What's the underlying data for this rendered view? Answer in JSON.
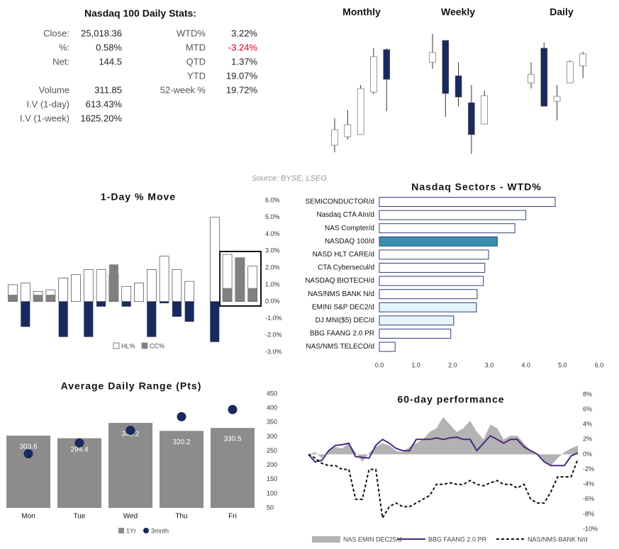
{
  "stats": {
    "title": "Nasdaq 100 Daily Stats:",
    "left": [
      [
        "Close:",
        "25,018.36"
      ],
      [
        "%:",
        "0.58%"
      ],
      [
        "Net:",
        "144.5"
      ],
      [
        "Volume",
        "311.85"
      ],
      [
        "I.V (1-day)",
        "613.43%"
      ],
      [
        "I.V (1-week)",
        "1625.20%"
      ]
    ],
    "right": [
      [
        "WTD%",
        "3.22%"
      ],
      [
        "MTD",
        "-3.24%"
      ],
      [
        "QTD",
        "1.37%"
      ],
      [
        "YTD",
        "19.07%"
      ],
      [
        "52-week %",
        "19.72%"
      ]
    ],
    "negative_color": "#d0021b"
  },
  "source": "Source: BYSE, LSEG",
  "chart_data": [
    {
      "type": "candlestick",
      "title": "Monthly",
      "up_color": "#ffffff",
      "down_color": "#1a2a5e",
      "open": [
        24550,
        24670,
        24700,
        25300,
        25900
      ],
      "high": [
        24930,
        25050,
        25400,
        25920,
        25920
      ],
      "low": [
        24450,
        24630,
        24700,
        25270,
        25030
      ],
      "close": [
        24770,
        24840,
        25350,
        25800,
        25480
      ]
    },
    {
      "type": "candlestick",
      "title": "Weekly",
      "up_color": "#ffffff",
      "down_color": "#1a2a5e",
      "open": [
        25720,
        26030,
        25530,
        25150,
        24850
      ],
      "high": [
        26120,
        26030,
        25720,
        25400,
        25320
      ],
      "low": [
        25630,
        24950,
        25100,
        24430,
        24850
      ],
      "close": [
        25860,
        25280,
        25230,
        24700,
        25250
      ]
    },
    {
      "type": "candlestick",
      "title": "Daily",
      "up_color": "#ffffff",
      "down_color": "#1a2a5e",
      "open": [
        25430,
        25920,
        25170,
        25430,
        25670
      ],
      "high": [
        25720,
        26000,
        25400,
        25750,
        25870
      ],
      "low": [
        25350,
        25100,
        24900,
        25430,
        25500
      ],
      "close": [
        25550,
        25100,
        25240,
        25730,
        25840
      ]
    },
    {
      "type": "bar",
      "title": "1-Day % Move",
      "series": [
        {
          "name": "HL%",
          "color": "#ffffff",
          "edgecolor": "#444444",
          "values": [
            1.0,
            1.1,
            0.6,
            0.7,
            1.4,
            1.6,
            1.9,
            1.9,
            1.6,
            0.9,
            1.1,
            1.9,
            2.7,
            1.9,
            1.2,
            null,
            5.0,
            2.8,
            2.6,
            2.1
          ]
        },
        {
          "name": "CC%",
          "color": "#808080",
          "negative_color": "#1a2a5e",
          "values": [
            0.4,
            -1.5,
            0.4,
            0.4,
            -2.1,
            0,
            -2.1,
            -0.3,
            2.2,
            -0.3,
            0,
            -2.1,
            -0.1,
            -0.9,
            -1.2,
            null,
            -2.4,
            0.8,
            2.6,
            0.8
          ]
        }
      ],
      "ylim": [
        -3,
        6
      ],
      "yticks": [
        {
          "value": 6,
          "label": "6.0%"
        },
        {
          "value": 5,
          "label": "5.0%"
        },
        {
          "value": 4,
          "label": "4.0%"
        },
        {
          "value": 3,
          "label": "3.0%"
        },
        {
          "value": 2,
          "label": "2.0%"
        },
        {
          "value": 1,
          "label": "1.0%"
        },
        {
          "value": 0,
          "label": "0.0%"
        },
        {
          "value": -1,
          "label": "-1.0%"
        },
        {
          "value": -2,
          "label": "-2.0%"
        },
        {
          "value": -3,
          "label": "-3.0%"
        }
      ]
    },
    {
      "type": "hbar",
      "title": "Nasdaq Sectors - WTD%",
      "edgecolor": "#2f3f7a",
      "categories": [
        "SEMICONDUCTOR/d",
        "Nasdaq CTA AIn/d",
        "NAS Compter/d",
        "NASDAQ 100/d",
        "NASD HLT CARE/d",
        "CTA Cybersecul/d",
        "NASDAQ BIOTECH/d",
        "NAS/NMS BANK N/d",
        "EMINI S&P DEC2/d",
        "DJ MNI($5) DEC/d",
        "BBG FAANG 2.0 PR",
        "NAS/NMS TELECO/d"
      ],
      "values": [
        4.8,
        4.0,
        3.7,
        3.22,
        2.98,
        2.88,
        2.84,
        2.67,
        2.65,
        2.03,
        1.95,
        0.43
      ],
      "colors": [
        "#ffffff",
        "#ffffff",
        "#ffffff",
        "#3a8fad",
        "#ffffff",
        "#ffffff",
        "#ffffff",
        "#ffffff",
        "#e3f5fb",
        "#e3f5fb",
        "#ffffff",
        "#ffffff"
      ],
      "xlim": [
        0,
        6
      ],
      "xticks": [
        {
          "value": 0,
          "label": "0.0"
        },
        {
          "value": 1,
          "label": "1.0"
        },
        {
          "value": 2,
          "label": "2.0"
        },
        {
          "value": 3,
          "label": "3.0"
        },
        {
          "value": 4,
          "label": "4.0"
        },
        {
          "value": 5,
          "label": "5.0"
        },
        {
          "value": 6,
          "label": "6.0"
        }
      ]
    },
    {
      "type": "bar_dot",
      "title": "Average Daily Range (Pts)",
      "categories": [
        "Mon",
        "Tue",
        "Wed",
        "Thu",
        "Fri"
      ],
      "series": [
        {
          "name": "1Yr",
          "color": "#8c8c8c",
          "values": [
            303.6,
            294.4,
            348.2,
            320.2,
            330.5
          ]
        },
        {
          "name": "3mnth",
          "color": "#1a2a5e",
          "values": [
            240,
            278,
            322,
            370,
            395
          ]
        }
      ],
      "ylim": [
        50,
        450
      ],
      "yticks": [
        450,
        400,
        350,
        300,
        250,
        200,
        150,
        100,
        50
      ]
    },
    {
      "type": "line",
      "title": "60-day performance",
      "series": [
        {
          "name": "NAS EMIN DEC25/d",
          "color": "#b3b3b3",
          "style": "area",
          "values": [
            0,
            0.3,
            -0.5,
            0.5,
            1,
            0.8,
            1.5,
            0.3,
            -1,
            0.2,
            1,
            1.5,
            1.2,
            0.5,
            0.3,
            1,
            1.5,
            2,
            3,
            3.5,
            5,
            4,
            3,
            3.5,
            4.5,
            3,
            2,
            4,
            3.5,
            2,
            2.5,
            2.5,
            1.5,
            0.5,
            0,
            -1,
            -1.5,
            -0.5,
            0.3,
            0.8,
            1.2
          ]
        },
        {
          "name": "BBG FAANG 2.0 PR",
          "color": "#4b2a7a",
          "style": "solid",
          "values": [
            0,
            -1,
            -0.8,
            0.5,
            1.2,
            1.3,
            1.5,
            -0.3,
            -0.4,
            -0.5,
            1.2,
            2,
            1.5,
            0.8,
            0.5,
            0.5,
            2,
            2,
            2,
            2.2,
            2,
            2.2,
            2.3,
            2,
            2,
            0.5,
            1.5,
            2.5,
            2,
            1.5,
            2,
            2,
            1,
            0.5,
            0,
            -1,
            -1.5,
            -1.5,
            -1.5,
            -0.2,
            0.2
          ]
        },
        {
          "name": "NAS/NMS BANK N/d",
          "color": "#111111",
          "style": "dashed",
          "values": [
            0,
            -0.5,
            -1.2,
            -1.5,
            -1.5,
            -2,
            -2,
            -6,
            -6,
            -2,
            -2,
            -8.5,
            -7,
            -6.5,
            -7,
            -7,
            -6.5,
            -6,
            -5.5,
            -4,
            -4,
            -3.8,
            -4,
            -4,
            -3.5,
            -4,
            -4.2,
            -3.8,
            -3.5,
            -4,
            -4,
            -4.5,
            -4,
            -6,
            -6.5,
            -6.5,
            -5,
            -3,
            -3,
            -3,
            -0.6
          ]
        }
      ],
      "ylim": [
        -10,
        8
      ],
      "yticks": [
        {
          "value": 8,
          "label": "8%"
        },
        {
          "value": 6,
          "label": "6%"
        },
        {
          "value": 4,
          "label": "4%"
        },
        {
          "value": 2,
          "label": "2%"
        },
        {
          "value": 0,
          "label": "0%"
        },
        {
          "value": -2,
          "label": "-2%"
        },
        {
          "value": -4,
          "label": "-4%"
        },
        {
          "value": -6,
          "label": "-6%"
        },
        {
          "value": -8,
          "label": "-8%"
        },
        {
          "value": -10,
          "label": "-10%"
        }
      ]
    }
  ]
}
